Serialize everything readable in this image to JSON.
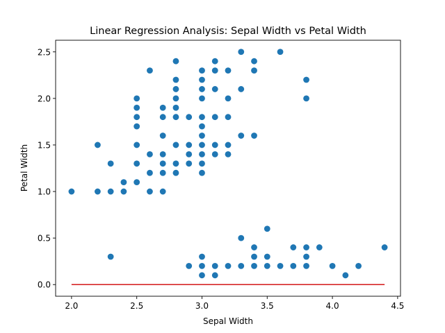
{
  "chart_data": {
    "type": "scatter",
    "title": "Linear Regression Analysis: Sepal Width vs Petal Width",
    "xlabel": "Sepal Width",
    "ylabel": "Petal Width",
    "xlim": [
      1.878,
      4.522
    ],
    "ylim": [
      -0.125,
      2.625
    ],
    "xticks": [
      2.0,
      2.5,
      3.0,
      3.5,
      4.0,
      4.5
    ],
    "yticks": [
      0.0,
      0.5,
      1.0,
      1.5,
      2.0,
      2.5
    ],
    "grid": false,
    "colors": {
      "points": "#1f77b4",
      "line": "#d62728"
    },
    "series": [
      {
        "kind": "scatter",
        "points": [
          [
            2.0,
            1.0
          ],
          [
            2.2,
            1.0
          ],
          [
            2.2,
            1.5
          ],
          [
            2.3,
            0.3
          ],
          [
            2.3,
            1.0
          ],
          [
            2.3,
            1.3
          ],
          [
            2.4,
            1.0
          ],
          [
            2.4,
            1.1
          ],
          [
            2.5,
            1.1
          ],
          [
            2.5,
            1.3
          ],
          [
            2.5,
            1.5
          ],
          [
            2.5,
            1.7
          ],
          [
            2.5,
            1.8
          ],
          [
            2.5,
            1.9
          ],
          [
            2.5,
            2.0
          ],
          [
            2.6,
            1.0
          ],
          [
            2.6,
            1.2
          ],
          [
            2.6,
            1.4
          ],
          [
            2.6,
            2.3
          ],
          [
            2.7,
            1.0
          ],
          [
            2.7,
            1.2
          ],
          [
            2.7,
            1.3
          ],
          [
            2.7,
            1.4
          ],
          [
            2.7,
            1.6
          ],
          [
            2.7,
            1.8
          ],
          [
            2.7,
            1.9
          ],
          [
            2.8,
            1.2
          ],
          [
            2.8,
            1.3
          ],
          [
            2.8,
            1.5
          ],
          [
            2.8,
            1.8
          ],
          [
            2.8,
            1.9
          ],
          [
            2.8,
            2.0
          ],
          [
            2.8,
            2.1
          ],
          [
            2.8,
            2.2
          ],
          [
            2.8,
            2.4
          ],
          [
            2.9,
            0.2
          ],
          [
            2.9,
            1.3
          ],
          [
            2.9,
            1.4
          ],
          [
            2.9,
            1.5
          ],
          [
            2.9,
            1.8
          ],
          [
            3.0,
            0.1
          ],
          [
            3.0,
            0.2
          ],
          [
            3.0,
            0.3
          ],
          [
            3.0,
            1.2
          ],
          [
            3.0,
            1.3
          ],
          [
            3.0,
            1.4
          ],
          [
            3.0,
            1.5
          ],
          [
            3.0,
            1.6
          ],
          [
            3.0,
            1.7
          ],
          [
            3.0,
            1.8
          ],
          [
            3.0,
            2.0
          ],
          [
            3.0,
            2.1
          ],
          [
            3.0,
            2.2
          ],
          [
            3.0,
            2.3
          ],
          [
            3.1,
            0.1
          ],
          [
            3.1,
            0.2
          ],
          [
            3.1,
            1.4
          ],
          [
            3.1,
            1.5
          ],
          [
            3.1,
            1.8
          ],
          [
            3.1,
            2.1
          ],
          [
            3.1,
            2.3
          ],
          [
            3.1,
            2.4
          ],
          [
            3.2,
            0.2
          ],
          [
            3.2,
            1.4
          ],
          [
            3.2,
            1.5
          ],
          [
            3.2,
            1.8
          ],
          [
            3.2,
            2.0
          ],
          [
            3.2,
            2.3
          ],
          [
            3.3,
            0.2
          ],
          [
            3.3,
            0.5
          ],
          [
            3.3,
            1.6
          ],
          [
            3.3,
            2.1
          ],
          [
            3.3,
            2.5
          ],
          [
            3.4,
            0.2
          ],
          [
            3.4,
            0.3
          ],
          [
            3.4,
            0.4
          ],
          [
            3.4,
            1.6
          ],
          [
            3.4,
            2.3
          ],
          [
            3.4,
            2.4
          ],
          [
            3.5,
            0.2
          ],
          [
            3.5,
            0.3
          ],
          [
            3.5,
            0.6
          ],
          [
            3.6,
            0.2
          ],
          [
            3.6,
            2.5
          ],
          [
            3.7,
            0.2
          ],
          [
            3.7,
            0.4
          ],
          [
            3.8,
            0.2
          ],
          [
            3.8,
            0.3
          ],
          [
            3.8,
            0.4
          ],
          [
            3.8,
            2.0
          ],
          [
            3.8,
            2.2
          ],
          [
            3.9,
            0.4
          ],
          [
            4.0,
            0.2
          ],
          [
            4.1,
            0.1
          ],
          [
            4.2,
            0.2
          ],
          [
            4.4,
            0.4
          ]
        ]
      },
      {
        "kind": "line",
        "x": [
          2.0,
          4.4
        ],
        "y": [
          0.0,
          0.0
        ]
      }
    ]
  }
}
